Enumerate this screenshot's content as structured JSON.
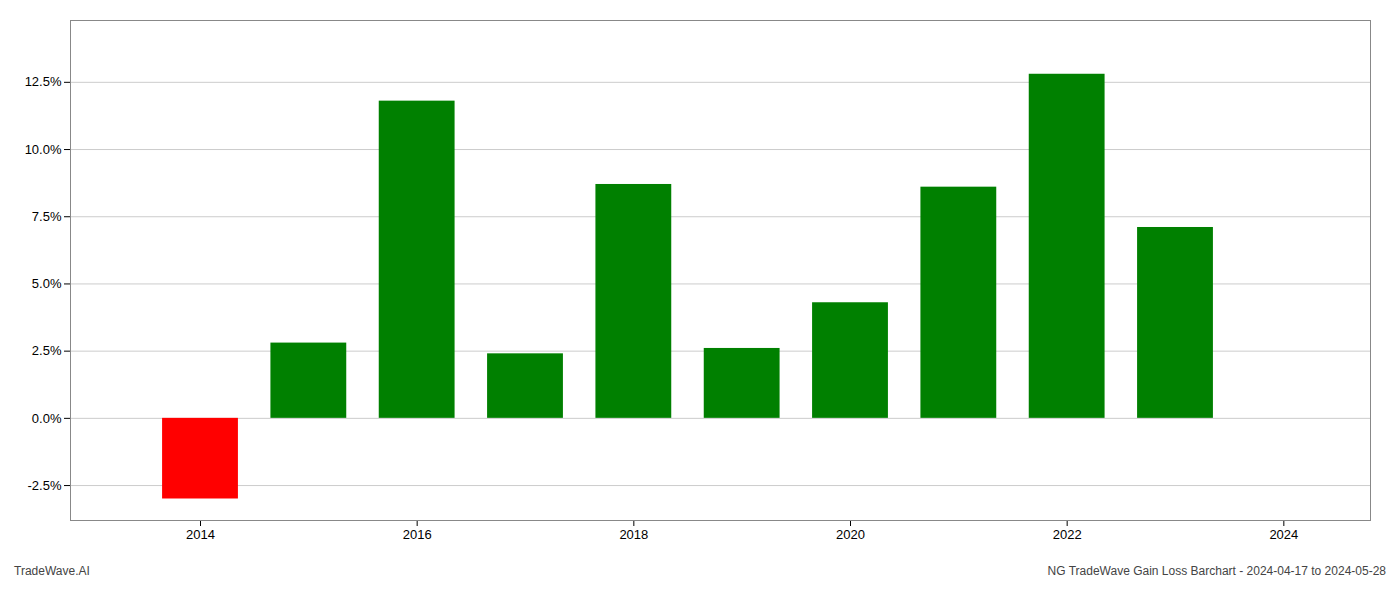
{
  "chart_data": {
    "type": "bar",
    "title": "NG TradeWave Gain Loss Barchart - 2024-04-17 to 2024-05-28",
    "annotations": [
      "TradeWave.AI"
    ],
    "x": [
      2014,
      2015,
      2016,
      2017,
      2018,
      2019,
      2020,
      2021,
      2022,
      2023
    ],
    "values": [
      -0.03,
      0.028,
      0.118,
      0.024,
      0.087,
      0.026,
      0.043,
      0.086,
      0.128,
      0.071
    ],
    "colors": [
      "#ff0000",
      "#008000",
      "#008000",
      "#008000",
      "#008000",
      "#008000",
      "#008000",
      "#008000",
      "#008000",
      "#008000"
    ],
    "xlim": [
      2012.8,
      2024.8
    ],
    "xticks": [
      2014,
      2016,
      2018,
      2020,
      2022,
      2024
    ],
    "ylim": [
      -0.038,
      0.148
    ],
    "yticks": [
      {
        "value": -0.025,
        "label": "-2.5%"
      },
      {
        "value": 0.0,
        "label": "0.0%"
      },
      {
        "value": 0.025,
        "label": "2.5%"
      },
      {
        "value": 0.05,
        "label": "5.0%"
      },
      {
        "value": 0.075,
        "label": "7.5%"
      },
      {
        "value": 0.1,
        "label": "10.0%"
      },
      {
        "value": 0.125,
        "label": "12.5%"
      }
    ],
    "grid": true
  }
}
